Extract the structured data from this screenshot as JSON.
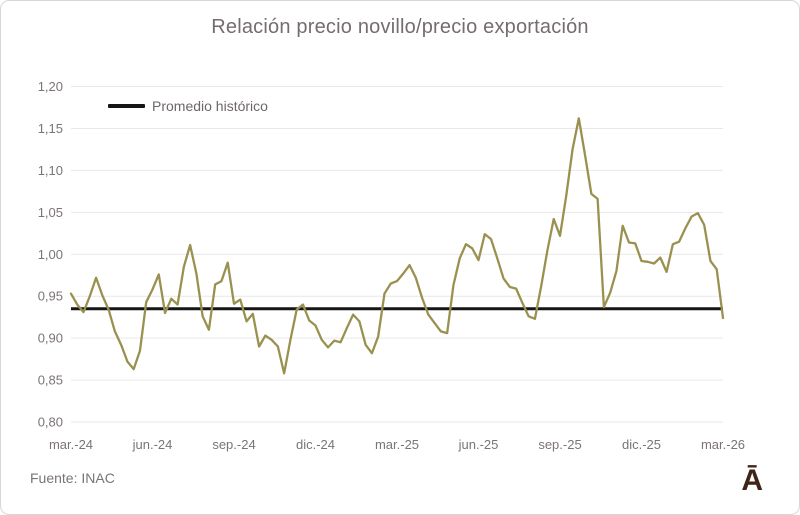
{
  "footer": {
    "source": "Fuente: INAC",
    "logo_glyph": "Ā"
  },
  "chart_data": {
    "type": "line",
    "title": "Relación precio novillo/precio exportación",
    "x_frequency": "weekly",
    "x_tick_labels": [
      "mar.-24",
      "jun.-24",
      "sep.-24",
      "dic.-24",
      "mar.-25",
      "jun.-25",
      "sep.-25",
      "dic.-25",
      "mar.-26"
    ],
    "y_tick_labels": [
      "1,20",
      "1,15",
      "1,10",
      "1,05",
      "1,00",
      "0,95",
      "0,90",
      "0,85",
      "0,80"
    ],
    "ylim": [
      0.8,
      1.2
    ],
    "y_tick_step": 0.05,
    "grid": "horizontal",
    "decimal_separator": ",",
    "legend": [
      {
        "label": "Promedio histórico",
        "swatch_color": "#161616"
      }
    ],
    "legend_position": "top-left-inside",
    "reference_line": {
      "name": "Promedio histórico",
      "value": 0.935,
      "color": "#161616"
    },
    "series": [
      {
        "name": "Relación precio novillo/precio exportación",
        "color": "#9a9150",
        "values": [
          0.953,
          0.94,
          0.931,
          0.95,
          0.972,
          0.951,
          0.934,
          0.908,
          0.892,
          0.872,
          0.863,
          0.885,
          0.943,
          0.958,
          0.976,
          0.93,
          0.947,
          0.94,
          0.985,
          1.011,
          0.977,
          0.926,
          0.91,
          0.964,
          0.968,
          0.99,
          0.941,
          0.946,
          0.92,
          0.929,
          0.89,
          0.903,
          0.898,
          0.89,
          0.858,
          0.898,
          0.934,
          0.94,
          0.921,
          0.915,
          0.898,
          0.889,
          0.897,
          0.895,
          0.912,
          0.928,
          0.92,
          0.892,
          0.882,
          0.902,
          0.953,
          0.965,
          0.968,
          0.977,
          0.987,
          0.972,
          0.948,
          0.928,
          0.918,
          0.908,
          0.906,
          0.963,
          0.995,
          1.012,
          1.007,
          0.993,
          1.024,
          1.018,
          0.995,
          0.971,
          0.961,
          0.959,
          0.942,
          0.926,
          0.923,
          0.962,
          1.005,
          1.042,
          1.022,
          1.07,
          1.125,
          1.162,
          1.118,
          1.072,
          1.066,
          0.937,
          0.954,
          0.98,
          1.034,
          1.014,
          1.013,
          0.992,
          0.991,
          0.989,
          0.996,
          0.979,
          1.012,
          1.015,
          1.031,
          1.045,
          1.049,
          1.035,
          0.992,
          0.982,
          0.924
        ]
      }
    ],
    "colors": {
      "grid": "#e9e7e7",
      "tick_text": "#7b7476",
      "title_text": "#756c6d"
    }
  }
}
